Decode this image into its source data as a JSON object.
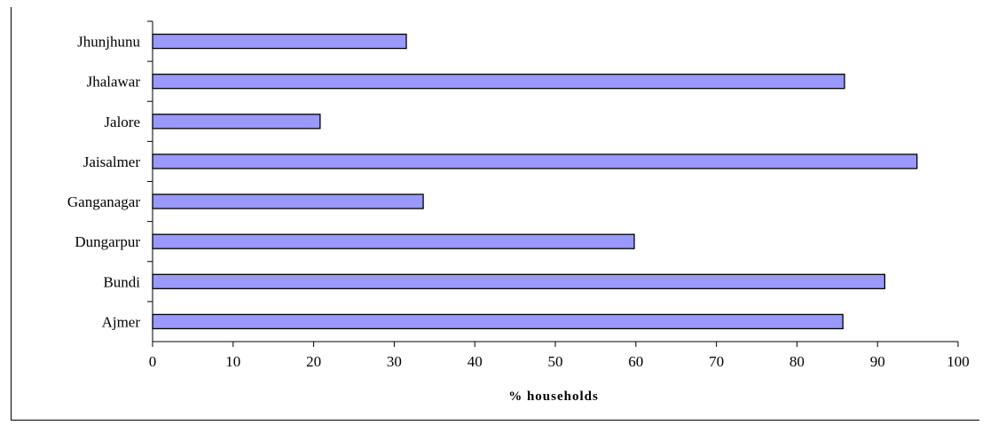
{
  "chart_data": {
    "type": "bar",
    "orientation": "horizontal",
    "title": "",
    "xlabel": "% households",
    "ylabel": "",
    "xlim": [
      0,
      100
    ],
    "x_ticks": [
      0,
      10,
      20,
      30,
      40,
      50,
      60,
      70,
      80,
      90,
      100
    ],
    "categories": [
      "Jhunjhunu",
      "Jhalawar",
      "Jalore",
      "Jaisalmer",
      "Ganganagar",
      "Dungarpur",
      "Bundi",
      "Ajmer"
    ],
    "values": [
      31.5,
      85.9,
      20.8,
      94.9,
      33.6,
      59.8,
      90.9,
      85.7
    ],
    "bar_color": "#9999ff",
    "bar_edge_color": "#000000",
    "grid": false,
    "legend": "none"
  }
}
